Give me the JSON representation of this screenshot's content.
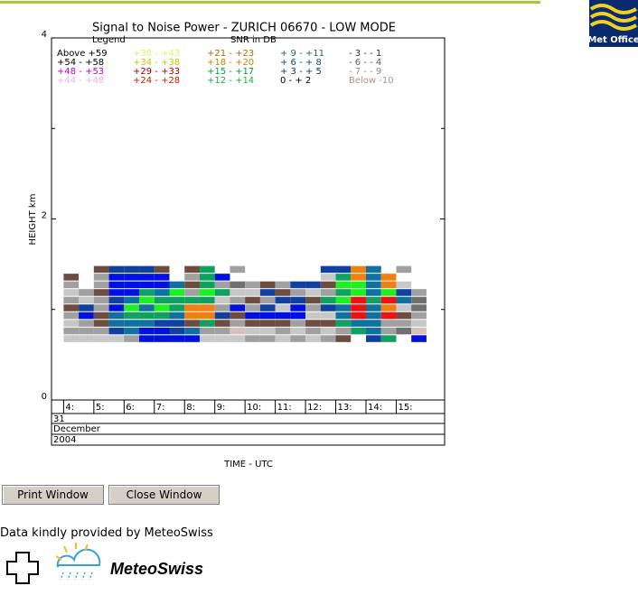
{
  "chart_data": {
    "type": "heatmap",
    "title": "Signal to Noise Power - ZURICH 06670 - LOW MODE",
    "legend_title": "Legend",
    "legend_subtitle": "SNR in DB",
    "ylabel": "HEIGHT km",
    "xlabel": "TIME - UTC",
    "ylim": [
      0,
      4
    ],
    "yticks": [
      0,
      2,
      4
    ],
    "yminor": [
      1,
      3
    ],
    "xlim": [
      3.6,
      16.6
    ],
    "xticks": [
      {
        "value": 4,
        "label": "4:"
      },
      {
        "value": 5,
        "label": "5:"
      },
      {
        "value": 6,
        "label": "6:"
      },
      {
        "value": 7,
        "label": "7:"
      },
      {
        "value": 8,
        "label": "8:"
      },
      {
        "value": 9,
        "label": "9:"
      },
      {
        "value": 10,
        "label": "10:"
      },
      {
        "value": 11,
        "label": "11:"
      },
      {
        "value": 12,
        "label": "12:"
      },
      {
        "value": 13,
        "label": "13:"
      },
      {
        "value": 14,
        "label": "14:"
      },
      {
        "value": 15,
        "label": "15:"
      }
    ],
    "date_rows": [
      "31",
      "December",
      "2004"
    ],
    "legend": [
      {
        "label": "Above +59",
        "color": "#000000"
      },
      {
        "label": "+54 - +58",
        "color": "#000000"
      },
      {
        "label": "+48 - +53",
        "color": "#c000c0"
      },
      {
        "label": "+44 - +48",
        "color": "#f0b0f0"
      },
      {
        "label": "+38 - +43",
        "color": "#e0f070"
      },
      {
        "label": "+34 - +38",
        "color": "#c8c800"
      },
      {
        "label": "+29 - +33",
        "color": "#a00000"
      },
      {
        "label": "+24 - +28",
        "color": "#c02000"
      },
      {
        "label": "+21 - +23",
        "color": "#c06000"
      },
      {
        "label": "+18 - +20",
        "color": "#d08000"
      },
      {
        "label": "+15 - +17",
        "color": "#00a040"
      },
      {
        "label": "+12 - +14",
        "color": "#20b040"
      },
      {
        "label": "+ 9 - +11",
        "color": "#207040"
      },
      {
        "label": "+ 6 - + 8",
        "color": "#105060"
      },
      {
        "label": "+ 3 - + 5",
        "color": "#103080"
      },
      {
        "label": "0 - + 2",
        "color": "#000000"
      },
      {
        "label": "- 3 - - 1",
        "color": "#303030"
      },
      {
        "label": "- 6 - - 4",
        "color": "#606060"
      },
      {
        "label": "- 7 - - 9",
        "color": "#909090"
      },
      {
        "label": "Below -10",
        "color": "#b09090"
      }
    ],
    "palette": [
      "#6e4c40",
      "#a0a0a0",
      "#c8c8c8",
      "#0010e0",
      "#1040a0",
      "#1070a0",
      "#10a060",
      "#20f020",
      "#f08010",
      "#f01010",
      "#d8c0c0",
      "#707070"
    ],
    "columns": [
      [
        2,
        1,
        2,
        1,
        0,
        1,
        2,
        1,
        0,
        null
      ],
      [
        2,
        1,
        1,
        3,
        4,
        2,
        1,
        null,
        null,
        null
      ],
      [
        2,
        1,
        0,
        0,
        1,
        1,
        0,
        1,
        1,
        0
      ],
      [
        2,
        4,
        5,
        5,
        3,
        4,
        3,
        3,
        3,
        4
      ],
      [
        1,
        5,
        5,
        6,
        7,
        5,
        3,
        3,
        3,
        4
      ],
      [
        3,
        3,
        5,
        6,
        5,
        7,
        6,
        3,
        3,
        4
      ],
      [
        3,
        3,
        4,
        6,
        7,
        6,
        5,
        3,
        3,
        0
      ],
      [
        3,
        4,
        4,
        5,
        6,
        6,
        7,
        5,
        null,
        null
      ],
      [
        3,
        5,
        0,
        8,
        8,
        6,
        1,
        0,
        1,
        0
      ],
      [
        2,
        1,
        6,
        8,
        8,
        6,
        7,
        6,
        6,
        6
      ],
      [
        2,
        1,
        0,
        4,
        1,
        2,
        6,
        1,
        3,
        null
      ],
      [
        2,
        10,
        1,
        0,
        3,
        1,
        2,
        11,
        null,
        1
      ],
      [
        1,
        2,
        0,
        3,
        1,
        0,
        2,
        1,
        null,
        null
      ],
      [
        1,
        2,
        0,
        3,
        4,
        1,
        4,
        0,
        null,
        null
      ],
      [
        2,
        1,
        0,
        3,
        2,
        4,
        0,
        1,
        null,
        null
      ],
      [
        1,
        2,
        1,
        3,
        3,
        4,
        1,
        4,
        null,
        null
      ],
      [
        2,
        1,
        0,
        2,
        1,
        0,
        2,
        4,
        null,
        null
      ],
      [
        1,
        2,
        0,
        2,
        4,
        6,
        1,
        0,
        2,
        4
      ],
      [
        0,
        1,
        6,
        5,
        5,
        7,
        6,
        7,
        6,
        4
      ],
      [
        null,
        6,
        5,
        9,
        9,
        9,
        7,
        7,
        8,
        8
      ],
      [
        4,
        5,
        5,
        5,
        5,
        6,
        5,
        5,
        5,
        5
      ],
      [
        6,
        1,
        1,
        9,
        8,
        9,
        7,
        8,
        8,
        null
      ],
      [
        null,
        11,
        1,
        0,
        2,
        5,
        4,
        2,
        null,
        1
      ],
      [
        3,
        10,
        2,
        1,
        11,
        11,
        1,
        null,
        null,
        null
      ]
    ]
  },
  "buttons": [
    "Print Window",
    "Close Window"
  ],
  "credit": "Data kindly provided by MeteoSwiss",
  "logos": {
    "met_office": "Met Office",
    "meteoswiss": "MeteoSwiss"
  }
}
